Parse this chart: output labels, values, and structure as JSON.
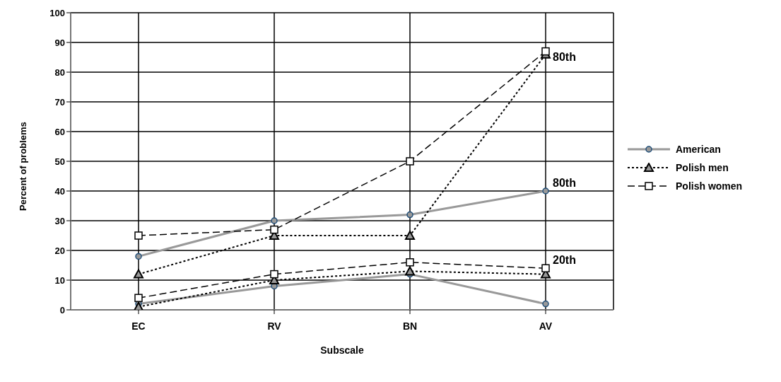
{
  "chart_data": {
    "type": "line",
    "xlabel": "Subscale",
    "ylabel": "Percent of problems",
    "categories": [
      "EC",
      "RV",
      "BN",
      "AV"
    ],
    "ylim": [
      0,
      100
    ],
    "yticks": [
      0,
      10,
      20,
      30,
      40,
      50,
      60,
      70,
      80,
      90,
      100
    ],
    "grid": true,
    "legend": "right",
    "series": [
      {
        "name": "American",
        "color": "#999999",
        "marker": "circle",
        "line_style": "solid",
        "values": [
          18,
          30,
          32,
          40
        ]
      },
      {
        "name": "Polish men",
        "color": "#000000",
        "marker": "triangle",
        "line_style": "dotted",
        "values": [
          12,
          25,
          25,
          86
        ]
      },
      {
        "name": "Polish women",
        "color": "#000000",
        "marker": "square",
        "line_style": "dashed",
        "values": [
          25,
          27,
          50,
          87
        ]
      },
      {
        "color": "#999999",
        "marker": "circle",
        "line_style": "solid",
        "values": [
          2,
          8,
          12,
          2
        ]
      },
      {
        "color": "#000000",
        "marker": "triangle",
        "line_style": "dotted",
        "values": [
          1,
          10,
          13,
          12
        ]
      },
      {
        "color": "#000000",
        "marker": "square",
        "line_style": "dashed",
        "values": [
          4,
          12,
          16,
          14
        ]
      }
    ],
    "annotations": [
      {
        "text": "80th",
        "x": "AV",
        "y": 87
      },
      {
        "text": "80th",
        "x": "AV",
        "y": 40
      },
      {
        "text": "20th",
        "x": "AV",
        "y": 14
      }
    ]
  }
}
